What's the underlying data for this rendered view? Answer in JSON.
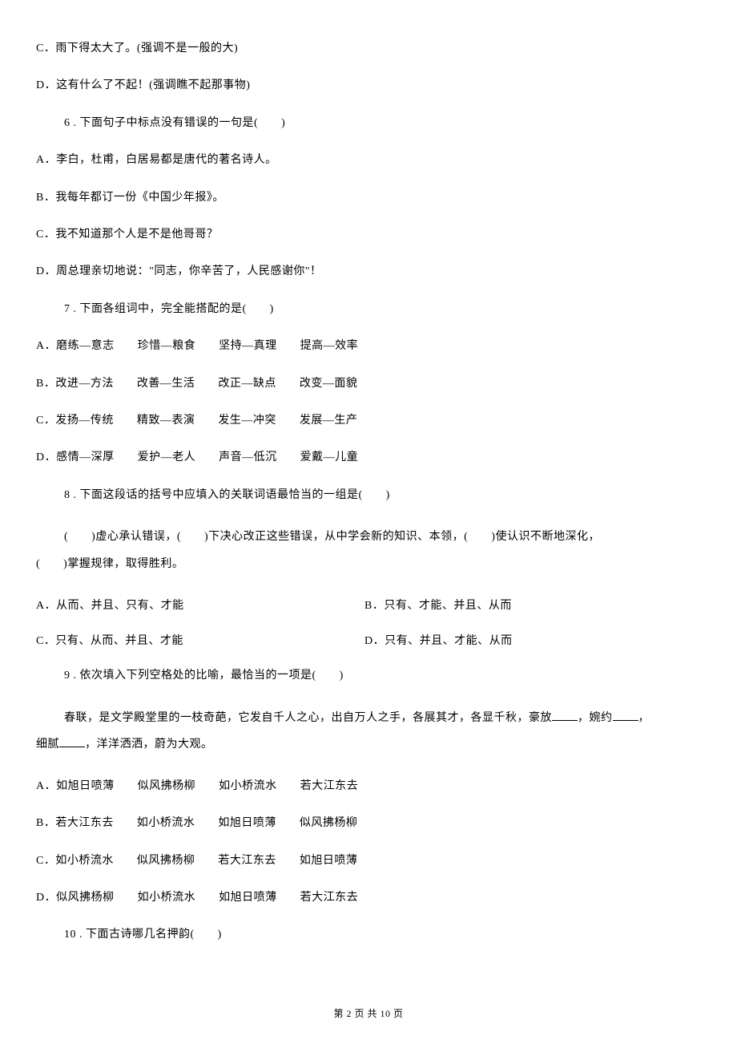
{
  "q5_options": {
    "c": "C．雨下得太大了。(强调不是一般的大)",
    "d": "D．这有什么了不起！(强调瞧不起那事物)"
  },
  "q6": {
    "stem": "6 . 下面句子中标点没有错误的一句是(　　)",
    "a": "A．李白，杜甫，白居易都是唐代的著名诗人。",
    "b": "B．我每年都订一份《中国少年报》。",
    "c": "C．我不知道那个人是不是他哥哥？",
    "d": "D．周总理亲切地说：\"同志，你辛苦了，人民感谢你\"！"
  },
  "q7": {
    "stem": "7 . 下面各组词中，完全能搭配的是(　　)",
    "a": "A．磨练—意志　　珍惜—粮食　　坚持—真理　　提高—效率",
    "b": "B．改进—方法　　改善—生活　　改正—缺点　　改变—面貌",
    "c": "C．发扬—传统　　精致—表演　　发生—冲突　　发展—生产",
    "d": "D．感情—深厚　　爱护—老人　　声音—低沉　　爱戴—儿童"
  },
  "q8": {
    "stem": "8 . 下面这段话的括号中应填入的关联词语最恰当的一组是(　　)",
    "passage_first": "(　　)虚心承认错误，(　　)下决心改正这些错误，从中学会新的知识、本领，(　　)使认识不断地深化，",
    "passage_cont": "(　　)掌握规律，取得胜利。",
    "a": "A．从而、并且、只有、才能",
    "b": "B．只有、才能、并且、从而",
    "c": "C．只有、从而、并且、才能",
    "d": "D．只有、并且、才能、从而"
  },
  "q9": {
    "stem": "9 . 依次填入下列空格处的比喻，最恰当的一项是(　　)",
    "passage_first": "春联，是文学殿堂里的一枝奇葩，它发自千人之心，出自万人之手，各展其才，各显千秋，豪放",
    "passage_mid": "，婉约",
    "passage_cont": "细腻",
    "passage_end": "，洋洋洒洒，蔚为大观。",
    "a": "A．如旭日喷薄　　似风拂杨柳　　如小桥流水　　若大江东去",
    "b": "B．若大江东去　　如小桥流水　　如旭日喷薄　　似风拂杨柳",
    "c": "C．如小桥流水　　似风拂杨柳　　若大江东去　　如旭日喷薄",
    "d": "D．似风拂杨柳　　如小桥流水　　如旭日喷薄　　若大江东去"
  },
  "q10": {
    "stem": "10 . 下面古诗哪几名押韵(　　)"
  },
  "footer": "第 2 页 共 10 页"
}
